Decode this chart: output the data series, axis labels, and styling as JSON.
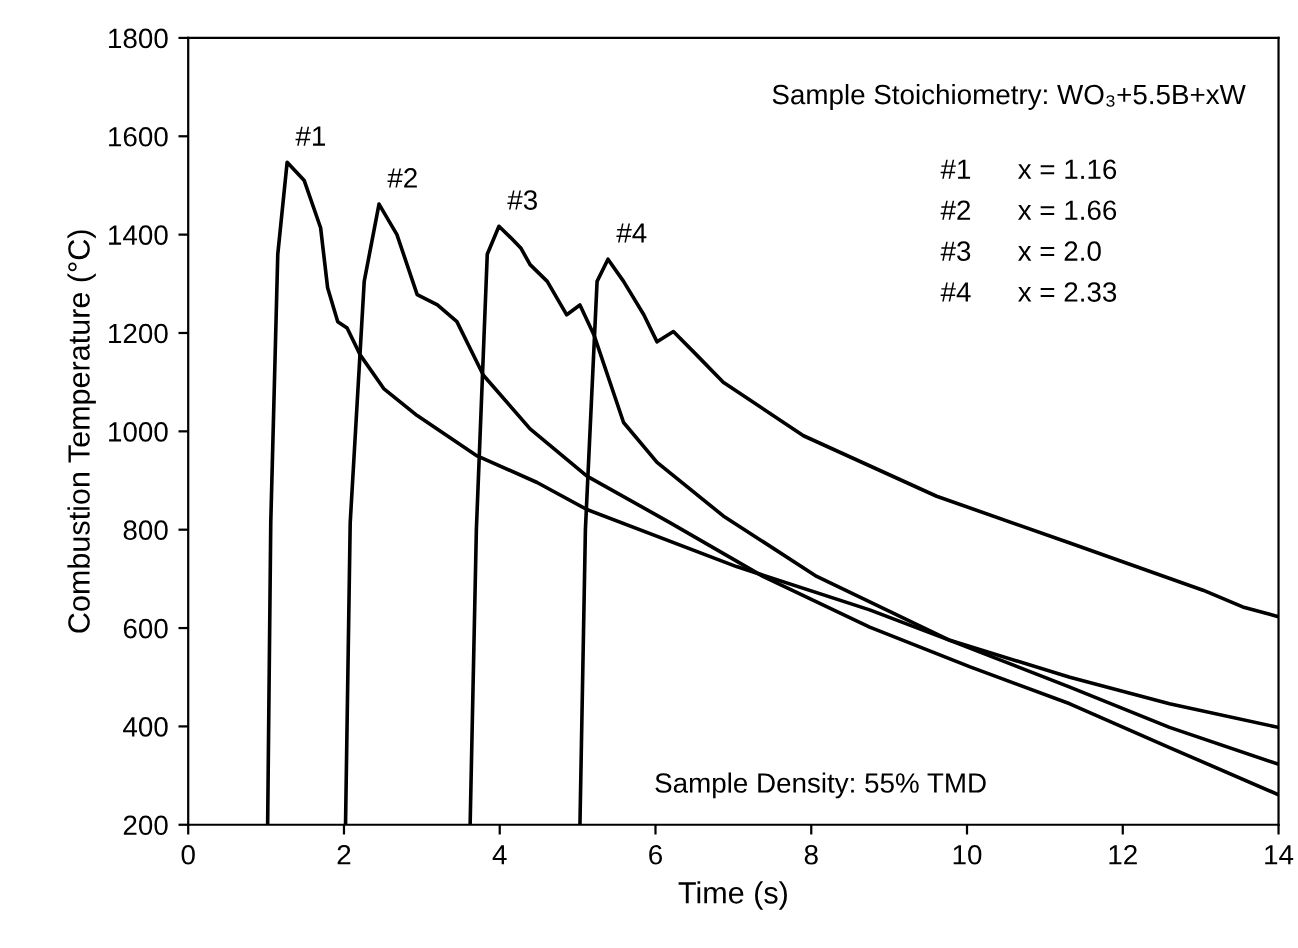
{
  "chart_data": {
    "type": "line",
    "xlabel": "Time (s)",
    "ylabel": "Combustion Temperature (°C)",
    "xlim": [
      0,
      14
    ],
    "ylim": [
      200,
      1800
    ],
    "xticks": [
      0,
      2,
      4,
      6,
      8,
      10,
      12,
      14
    ],
    "yticks": [
      200,
      400,
      600,
      800,
      1000,
      1200,
      1400,
      1600,
      1800
    ],
    "grid": false,
    "legend": false,
    "marker": "none",
    "line_style": "solid",
    "series": [
      {
        "name": "#1",
        "color": "#000000",
        "x": [
          1.02,
          1.06,
          1.15,
          1.27,
          1.49,
          1.7,
          1.79,
          1.92,
          2.04,
          2.21,
          2.51,
          2.94,
          3.71,
          4.48,
          5.12,
          7.04,
          8.75,
          9.78,
          11.32,
          12.6,
          14.0
        ],
        "values": [
          200,
          814,
          1360,
          1547,
          1510,
          1414,
          1292,
          1223,
          1210,
          1155,
          1087,
          1032,
          950,
          896,
          841,
          725,
          637,
          575,
          500,
          446,
          398
        ]
      },
      {
        "name": "#2",
        "color": "#000000",
        "x": [
          2.02,
          2.08,
          2.26,
          2.45,
          2.68,
          2.94,
          3.2,
          3.45,
          3.79,
          4.39,
          5.12,
          6.19,
          7.38,
          8.75,
          10.04,
          11.32,
          12.6,
          14.0
        ],
        "values": [
          200,
          814,
          1305,
          1462,
          1400,
          1278,
          1257,
          1223,
          1114,
          1005,
          909,
          814,
          705,
          602,
          521,
          446,
          357,
          261
        ]
      },
      {
        "name": "#3",
        "color": "#000000",
        "x": [
          3.62,
          3.7,
          3.84,
          3.99,
          4.14,
          4.27,
          4.39,
          4.61,
          4.86,
          5.03,
          5.21,
          5.59,
          6.02,
          6.87,
          8.07,
          9.78,
          11.32,
          12.6,
          14.0
        ],
        "values": [
          200,
          800,
          1360,
          1417,
          1394,
          1373,
          1339,
          1305,
          1237,
          1257,
          1196,
          1018,
          937,
          828,
          705,
          575,
          480,
          398,
          323
        ]
      },
      {
        "name": "#4",
        "color": "#000000",
        "x": [
          5.03,
          5.1,
          5.25,
          5.39,
          5.59,
          5.85,
          6.02,
          6.23,
          6.53,
          6.87,
          7.9,
          9.61,
          11.32,
          13.03,
          13.54,
          14.0
        ],
        "values": [
          200,
          800,
          1305,
          1350,
          1305,
          1237,
          1182,
          1203,
          1155,
          1100,
          991,
          868,
          773,
          677,
          643,
          623
        ]
      }
    ],
    "annotations": [
      "Sample Stoichiometry: WO₃+5.5B+xW",
      "#1      x = 1.16",
      "#2      x = 1.66",
      "#3      x = 2.0",
      "#4      x = 2.33",
      "Sample Density: 55% TMD"
    ]
  }
}
